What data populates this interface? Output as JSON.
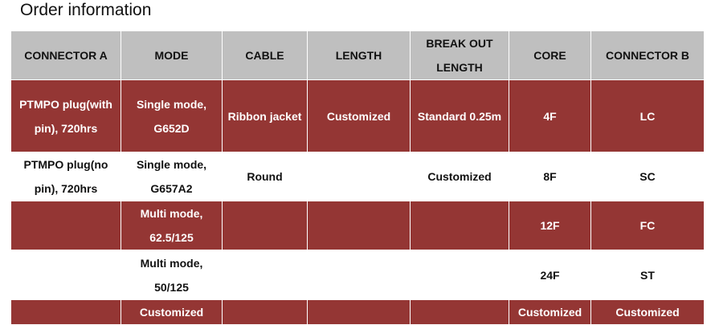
{
  "title": "Order information",
  "colors": {
    "header": "#bfbfbf",
    "accent_row": "#943634"
  },
  "headers": [
    "CONNECTOR A",
    "MODE",
    "CABLE",
    "LENGTH",
    "BREAK OUT LENGTH",
    "CORE",
    "CONNECTOR B"
  ],
  "rows": [
    [
      "PTMPO plug(with pin), 720hrs",
      "Single mode, G652D",
      "Ribbon jacket",
      "Customized",
      "Standard 0.25m",
      "4F",
      "LC"
    ],
    [
      "PTMPO plug(no pin), 720hrs",
      "Single mode, G657A2",
      "Round",
      "",
      "Customized",
      "8F",
      "SC"
    ],
    [
      "",
      "Multi mode, 62.5/125",
      "",
      "",
      "",
      "12F",
      "FC"
    ],
    [
      "",
      "Multi mode, 50/125",
      "",
      "",
      "",
      "24F",
      "ST"
    ],
    [
      "",
      "Customized",
      "",
      "",
      "",
      "Customized",
      "Customized"
    ]
  ]
}
